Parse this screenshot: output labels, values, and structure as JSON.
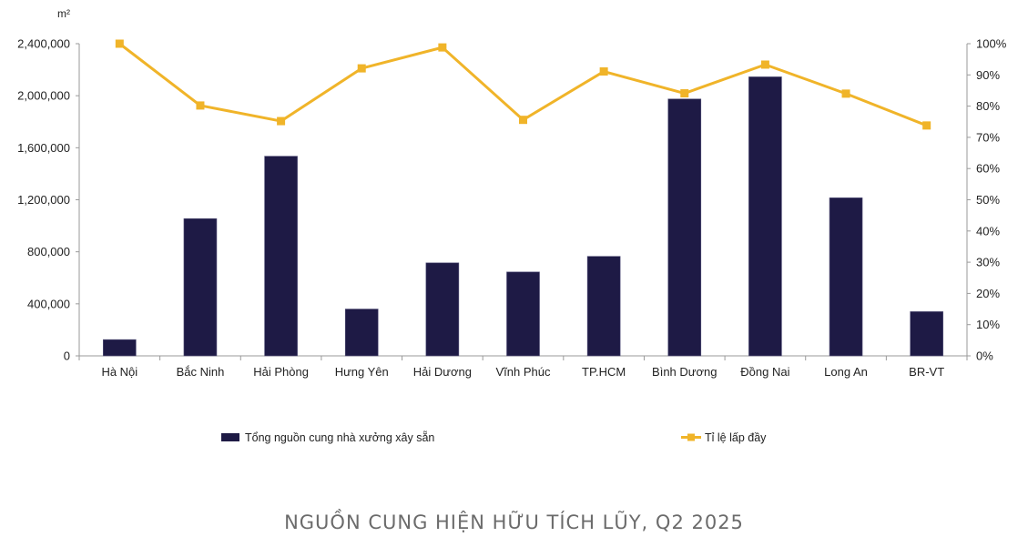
{
  "chart_data": {
    "type": "bar",
    "unit_label": "m²",
    "categories": [
      "Hà Nội",
      "Bắc Ninh",
      "Hải Phòng",
      "Hưng Yên",
      "Hải Dương",
      "Vĩnh Phúc",
      "TP.HCM",
      "Bình Dương",
      "Đồng Nai",
      "Long An",
      "BR-VT"
    ],
    "series": [
      {
        "name": "Tổng nguồn cung nhà xưởng xây sẵn",
        "type": "bar",
        "axis": "left",
        "color": "#1e1a45",
        "values": [
          125000,
          1055000,
          1535000,
          360000,
          715000,
          645000,
          765000,
          1975000,
          2145000,
          1215000,
          340000
        ]
      },
      {
        "name": "Tỉ lệ lấp đầy",
        "type": "line",
        "axis": "right",
        "color": "#f0b429",
        "values": [
          100,
          80.2,
          75.2,
          92.1,
          98.8,
          75.6,
          91.1,
          84.1,
          93.3,
          84.0,
          73.8
        ]
      }
    ],
    "y_left": {
      "range": [
        0,
        2400000
      ],
      "ticks": [
        0,
        400000,
        800000,
        1200000,
        1600000,
        2000000,
        2400000
      ],
      "tick_labels": [
        "0",
        "400,000",
        "800,000",
        "1,200,000",
        "1,600,000",
        "2,000,000",
        "2,400,000"
      ]
    },
    "y_right": {
      "range": [
        0,
        100
      ],
      "ticks": [
        0,
        10,
        20,
        30,
        40,
        50,
        60,
        70,
        80,
        90,
        100
      ],
      "tick_labels": [
        "0%",
        "10%",
        "20%",
        "30%",
        "40%",
        "50%",
        "60%",
        "70%",
        "80%",
        "90%",
        "100%"
      ]
    },
    "grid": false,
    "legend_position": "bottom"
  },
  "caption": "NGUỒN CUNG HIỆN HỮU TÍCH LŨY, Q2 2025"
}
